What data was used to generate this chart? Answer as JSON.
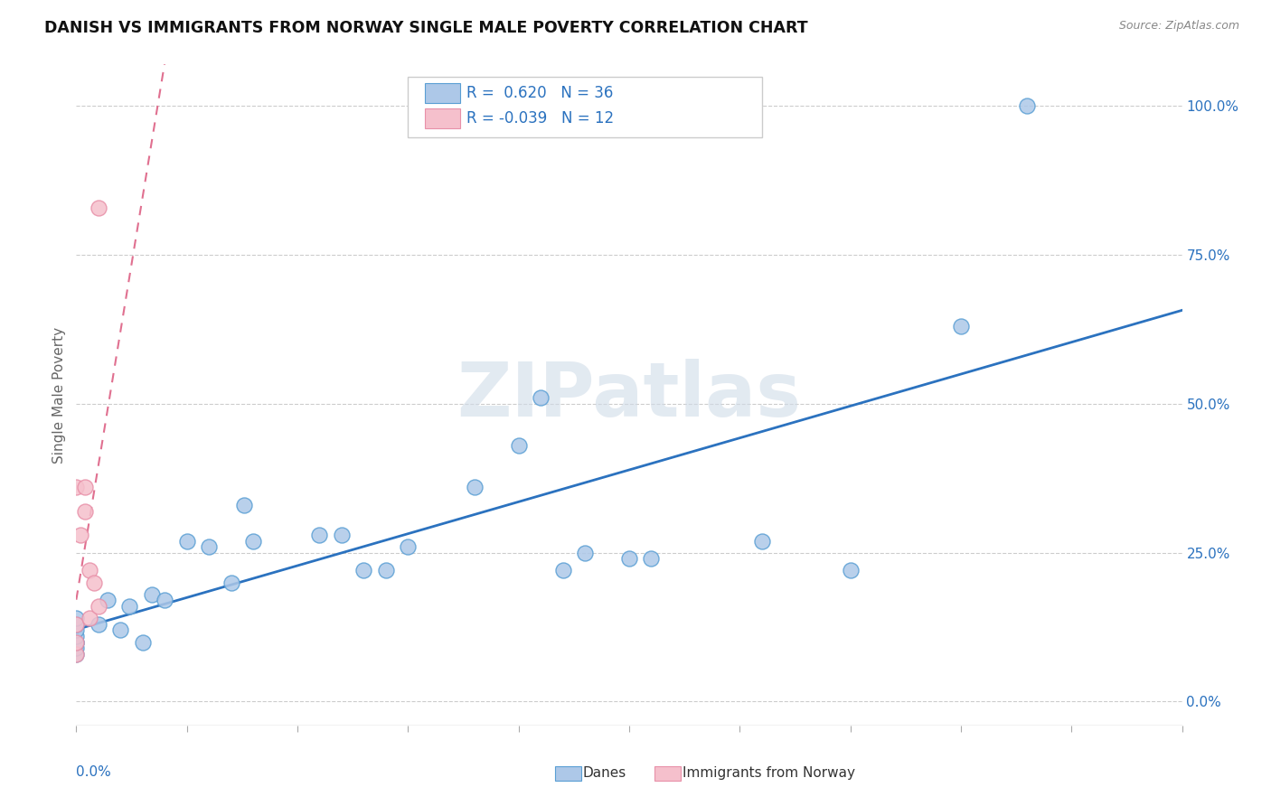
{
  "title": "DANISH VS IMMIGRANTS FROM NORWAY SINGLE MALE POVERTY CORRELATION CHART",
  "source": "Source: ZipAtlas.com",
  "ylabel": "Single Male Poverty",
  "xlim": [
    0.0,
    0.25
  ],
  "ylim": [
    -0.04,
    1.07
  ],
  "legend_r_danes": "0.620",
  "legend_n_danes": "36",
  "legend_r_norway": "-0.039",
  "legend_n_norway": "12",
  "danes_x": [
    0.0,
    0.0,
    0.0,
    0.0,
    0.0,
    0.0,
    0.0,
    0.0,
    0.005,
    0.007,
    0.01,
    0.012,
    0.015,
    0.017,
    0.02,
    0.025,
    0.03,
    0.035,
    0.038,
    0.04,
    0.055,
    0.06,
    0.065,
    0.07,
    0.075,
    0.09,
    0.1,
    0.105,
    0.11,
    0.115,
    0.125,
    0.13,
    0.155,
    0.175,
    0.2,
    0.215
  ],
  "danes_y": [
    0.08,
    0.09,
    0.1,
    0.1,
    0.11,
    0.12,
    0.13,
    0.14,
    0.13,
    0.17,
    0.12,
    0.16,
    0.1,
    0.18,
    0.17,
    0.27,
    0.26,
    0.2,
    0.33,
    0.27,
    0.28,
    0.28,
    0.22,
    0.22,
    0.26,
    0.36,
    0.43,
    0.51,
    0.22,
    0.25,
    0.24,
    0.24,
    0.27,
    0.22,
    0.63,
    1.0
  ],
  "norway_x": [
    0.0,
    0.0,
    0.0,
    0.0,
    0.001,
    0.002,
    0.002,
    0.003,
    0.003,
    0.004,
    0.005,
    0.005
  ],
  "norway_y": [
    0.08,
    0.1,
    0.13,
    0.36,
    0.28,
    0.32,
    0.36,
    0.22,
    0.14,
    0.2,
    0.16,
    0.83
  ],
  "danes_color": "#adc8e8",
  "danes_edge_color": "#5a9fd4",
  "danes_line_color": "#2b72bf",
  "norway_color": "#f5c0cc",
  "norway_edge_color": "#e890a8",
  "norway_line_color": "#e07090",
  "background_color": "#ffffff",
  "grid_color": "#cccccc",
  "ytick_values": [
    0.0,
    0.25,
    0.5,
    0.75,
    1.0
  ],
  "watermark_text": "ZIPatlas",
  "watermark_color": "#d0dce8",
  "title_fontsize": 12.5,
  "axis_label_fontsize": 11,
  "tick_fontsize": 11
}
